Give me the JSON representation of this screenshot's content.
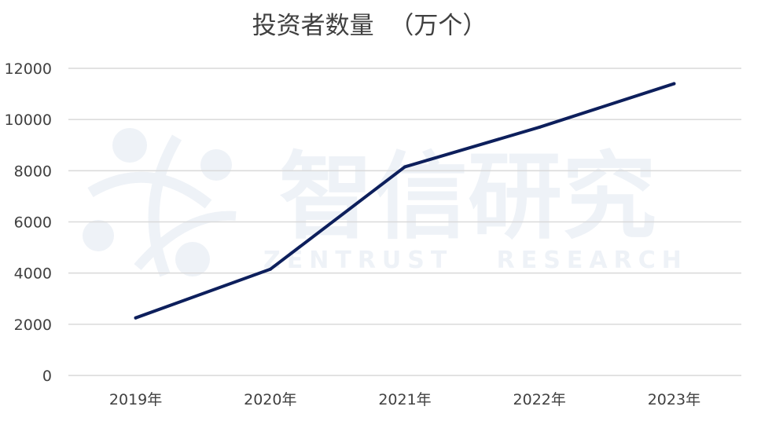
{
  "watermark": {
    "cn": "智信研究",
    "en": "ZENTRUST   RESEARCH"
  },
  "chart_data": {
    "type": "line",
    "title": "投资者数量  （万个）",
    "categories": [
      "2019年",
      "2020年",
      "2021年",
      "2022年",
      "2023年"
    ],
    "series": [
      {
        "values": [
          2250,
          4150,
          8150,
          9700,
          11400
        ]
      }
    ],
    "ylim": [
      0,
      12000
    ],
    "yticks": [
      0,
      2000,
      4000,
      6000,
      8000,
      10000,
      12000
    ],
    "grid": true,
    "line_color": "#0d1f5c",
    "grid_color": "#d9d9d9"
  }
}
